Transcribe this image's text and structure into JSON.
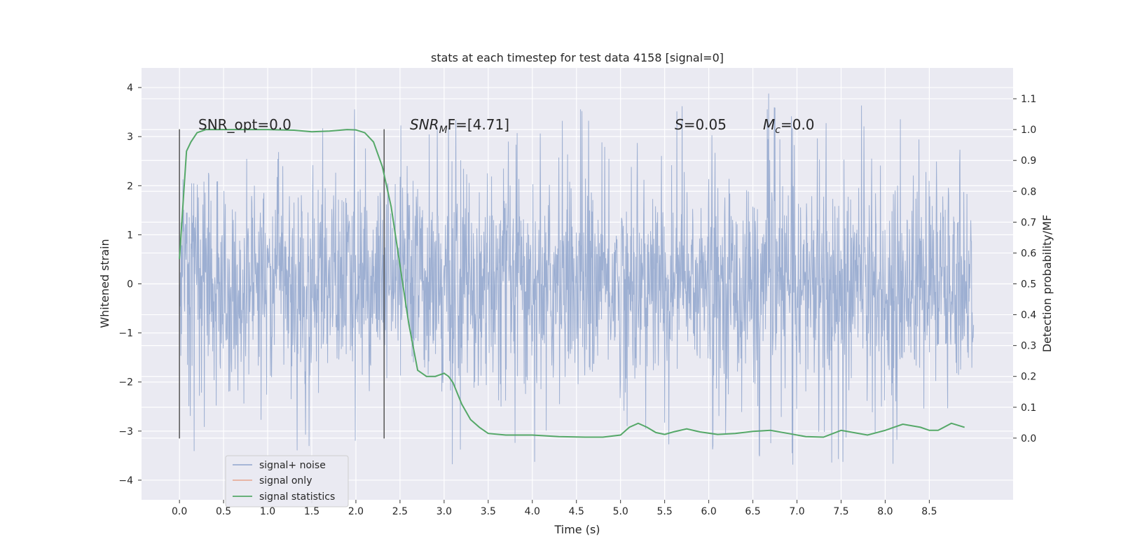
{
  "chart_data": {
    "type": "line",
    "title": "stats at each timestep for test data 4158 [signal=0]",
    "xlabel": "Time (s)",
    "ylabel_left": "Whitened strain",
    "ylabel_right": "Detection probability/MF",
    "xlim": [
      -0.43,
      9.45
    ],
    "ylim_left": [
      -4.4,
      4.4
    ],
    "ylim_right": [
      -0.2,
      1.2
    ],
    "grid": true,
    "x_ticks": [
      "0.0",
      "0.5",
      "1.0",
      "1.5",
      "2.0",
      "2.5",
      "3.0",
      "3.5",
      "4.0",
      "4.5",
      "5.0",
      "5.5",
      "6.0",
      "6.5",
      "7.0",
      "7.5",
      "8.0",
      "8.5"
    ],
    "y_left_ticks": [
      "−4",
      "−3",
      "−2",
      "−1",
      "0",
      "1",
      "2",
      "3",
      "4"
    ],
    "y_right_ticks": [
      "0.0",
      "0.1",
      "0.2",
      "0.3",
      "0.4",
      "0.5",
      "0.6",
      "0.7",
      "0.8",
      "0.9",
      "1.0",
      "1.1"
    ],
    "vertical_lines_x": [
      0.0,
      2.32
    ],
    "noise_envelope": {
      "x_range": [
        0.0,
        9.0
      ],
      "typical_amplitude": 1.3,
      "peak_range": [
        -3.8,
        4.0
      ]
    },
    "series": [
      {
        "name": "signal+ noise",
        "axis": "left",
        "color": "#8fa4cc",
        "kind": "dense-noise"
      },
      {
        "name": "signal only",
        "axis": "left",
        "color": "#e8a58c",
        "kind": "line",
        "x": [],
        "values": []
      },
      {
        "name": "signal statistics",
        "axis": "right",
        "color": "#55a868",
        "kind": "line",
        "x": [
          0.0,
          0.02,
          0.05,
          0.08,
          0.13,
          0.2,
          0.3,
          0.5,
          0.8,
          1.0,
          1.3,
          1.5,
          1.7,
          1.9,
          2.0,
          2.1,
          2.2,
          2.3,
          2.4,
          2.5,
          2.6,
          2.7,
          2.75,
          2.8,
          2.9,
          3.0,
          3.05,
          3.1,
          3.2,
          3.3,
          3.4,
          3.5,
          3.7,
          4.0,
          4.3,
          4.6,
          4.8,
          5.0,
          5.1,
          5.2,
          5.3,
          5.4,
          5.5,
          5.6,
          5.75,
          5.9,
          6.1,
          6.3,
          6.5,
          6.7,
          6.9,
          7.1,
          7.3,
          7.5,
          7.6,
          7.8,
          8.0,
          8.2,
          8.4,
          8.5,
          8.6,
          8.75,
          8.9
        ],
        "values": [
          0.58,
          0.67,
          0.8,
          0.93,
          0.96,
          0.99,
          1.0,
          1.0,
          1.0,
          1.0,
          0.998,
          0.993,
          0.995,
          1.0,
          0.999,
          0.99,
          0.96,
          0.88,
          0.75,
          0.56,
          0.37,
          0.22,
          0.21,
          0.2,
          0.2,
          0.21,
          0.2,
          0.18,
          0.11,
          0.06,
          0.035,
          0.015,
          0.01,
          0.01,
          0.005,
          0.003,
          0.003,
          0.01,
          0.035,
          0.048,
          0.035,
          0.018,
          0.012,
          0.02,
          0.03,
          0.02,
          0.012,
          0.015,
          0.022,
          0.025,
          0.015,
          0.005,
          0.003,
          0.025,
          0.02,
          0.01,
          0.025,
          0.045,
          0.035,
          0.025,
          0.025,
          0.048,
          0.035
        ]
      }
    ],
    "annotations": [
      {
        "text": "SNR_opt=0.0",
        "x": 0.2,
        "y_axis": "left",
        "y": 3.2,
        "italic": false
      },
      {
        "text": "SNR",
        "sub": "M",
        "tail": "F=[4.71]",
        "x": 2.6,
        "y": 3.2,
        "italic": true
      },
      {
        "text": "S",
        "tail": "=0.05",
        "x": 5.6,
        "y": 3.2,
        "italic": true
      },
      {
        "text": "M",
        "sub": "c",
        "tail": "=0.0",
        "x": 6.6,
        "y": 3.2,
        "italic": true
      }
    ],
    "legend": {
      "placement": "lower-left",
      "entries": [
        "signal+ noise",
        "signal only",
        "signal statistics"
      ]
    }
  }
}
